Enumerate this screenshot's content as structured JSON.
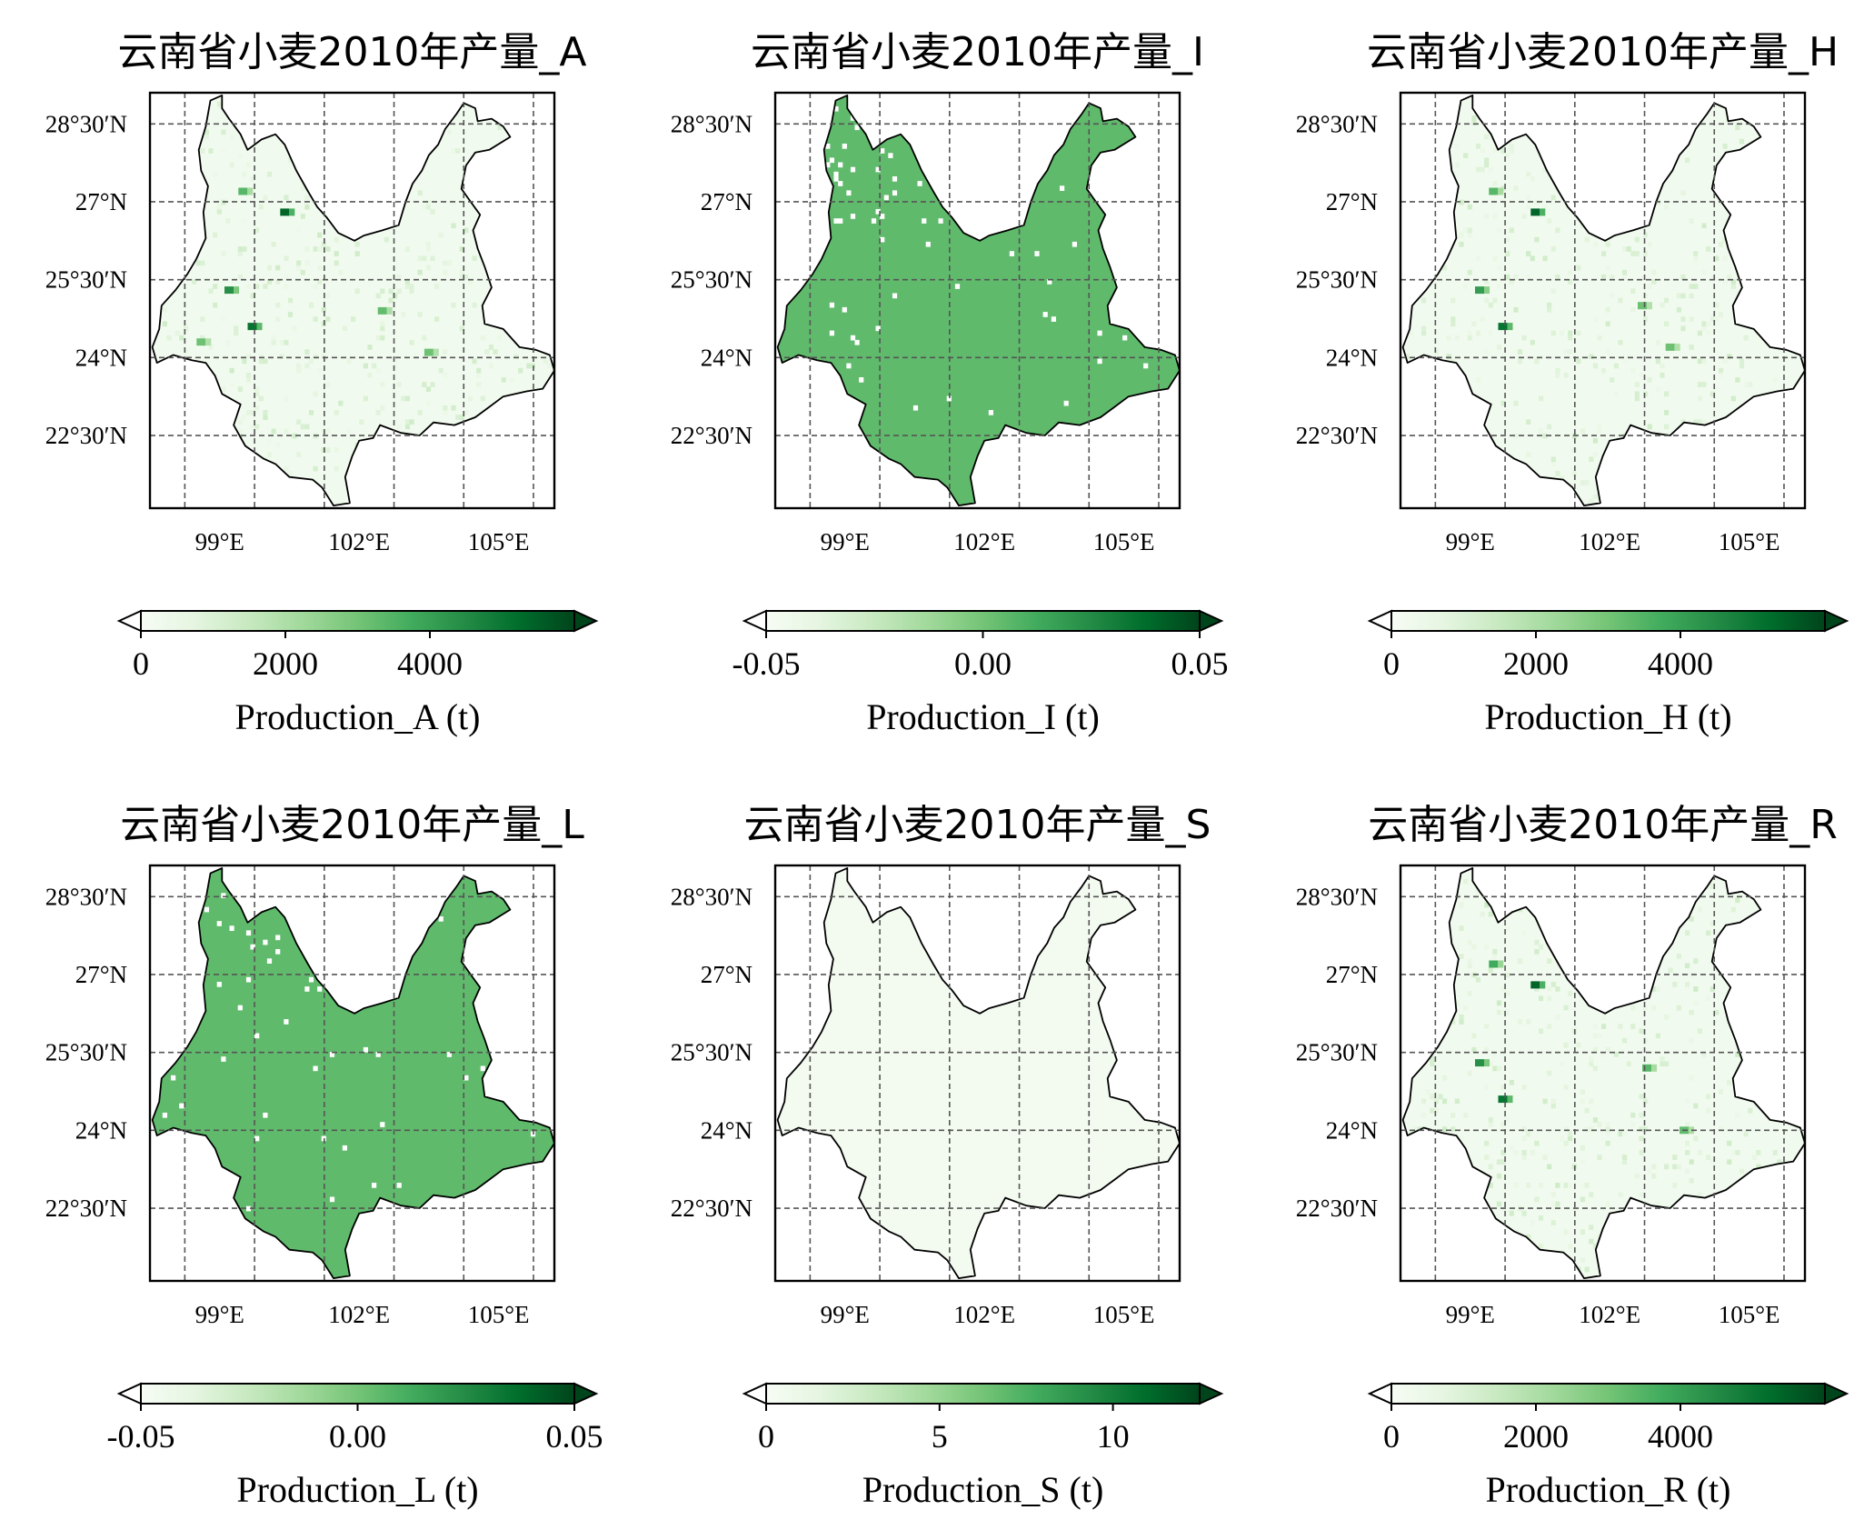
{
  "figure": {
    "panels": [
      {
        "title": "云南省小麦2010年产量_A",
        "field": "A",
        "fill_level": 0.04,
        "colorbar": {
          "label": "Production_A (t)",
          "vmax": 6000,
          "ticks": [
            {
              "v": 0,
              "label": "0"
            },
            {
              "v": 2000,
              "label": "2000"
            },
            {
              "v": 4000,
              "label": "4000"
            }
          ]
        },
        "hotspots": [
          [
            100.4,
            26.8,
            1.0
          ],
          [
            99.2,
            25.3,
            0.7
          ],
          [
            99.7,
            24.6,
            0.9
          ],
          [
            98.6,
            24.3,
            0.3
          ],
          [
            102.5,
            24.9,
            0.35
          ],
          [
            103.5,
            24.1,
            0.3
          ],
          [
            99.5,
            27.2,
            0.4
          ]
        ]
      },
      {
        "title": "云南省小麦2010年产量_I",
        "field": "I",
        "fill_level": 0.55,
        "colorbar": {
          "label": "Production_I (t)",
          "vmax": 0.05,
          "vmin": -0.05,
          "ticks": [
            {
              "v": -0.05,
              "label": "-0.05"
            },
            {
              "v": 0.0,
              "label": "0.00"
            },
            {
              "v": 0.05,
              "label": "0.05"
            }
          ]
        },
        "hotspots": []
      },
      {
        "title": "云南省小麦2010年产量_H",
        "field": "H",
        "fill_level": 0.04,
        "colorbar": {
          "label": "Production_H (t)",
          "vmax": 6000,
          "ticks": [
            {
              "v": 0,
              "label": "0"
            },
            {
              "v": 2000,
              "label": "2000"
            },
            {
              "v": 4000,
              "label": "4000"
            }
          ]
        },
        "hotspots": [
          [
            100.4,
            26.8,
            1.0
          ],
          [
            99.2,
            25.3,
            0.6
          ],
          [
            99.7,
            24.6,
            0.9
          ],
          [
            102.7,
            25.0,
            0.3
          ],
          [
            103.3,
            24.2,
            0.3
          ],
          [
            99.5,
            27.2,
            0.4
          ]
        ]
      },
      {
        "title": "云南省小麦2010年产量_L",
        "field": "L",
        "fill_level": 0.55,
        "colorbar": {
          "label": "Production_L (t)",
          "vmax": 0.05,
          "vmin": -0.05,
          "ticks": [
            {
              "v": -0.05,
              "label": "-0.05"
            },
            {
              "v": 0.0,
              "label": "0.00"
            },
            {
              "v": 0.05,
              "label": "0.05"
            }
          ]
        },
        "hotspots": []
      },
      {
        "title": "云南省小麦2010年产量_S",
        "field": "S",
        "fill_level": 0.03,
        "colorbar": {
          "label": "Production_S (t)",
          "vmax": 12.5,
          "ticks": [
            {
              "v": 0,
              "label": "0"
            },
            {
              "v": 5,
              "label": "5"
            },
            {
              "v": 10,
              "label": "10"
            }
          ]
        },
        "hotspots": []
      },
      {
        "title": "云南省小麦2010年产量_R",
        "field": "R",
        "fill_level": 0.04,
        "colorbar": {
          "label": "Production_R (t)",
          "vmax": 6000,
          "ticks": [
            {
              "v": 0,
              "label": "0"
            },
            {
              "v": 2000,
              "label": "2000"
            },
            {
              "v": 4000,
              "label": "4000"
            }
          ]
        },
        "hotspots": [
          [
            100.4,
            26.8,
            1.0
          ],
          [
            99.2,
            25.3,
            0.7
          ],
          [
            99.7,
            24.6,
            0.9
          ],
          [
            102.8,
            25.2,
            0.4
          ],
          [
            103.6,
            24.0,
            0.35
          ],
          [
            99.5,
            27.2,
            0.5
          ]
        ]
      }
    ],
    "lon_ticks": [
      {
        "v": 99,
        "label": "99°E"
      },
      {
        "v": 102,
        "label": "102°E"
      },
      {
        "v": 105,
        "label": "105°E"
      }
    ],
    "lat_ticks": [
      {
        "v": 28.5,
        "label": "28°30′N"
      },
      {
        "v": 27,
        "label": "27°N"
      },
      {
        "v": 25.5,
        "label": "25°30′N"
      },
      {
        "v": 24,
        "label": "24°N"
      },
      {
        "v": 22.5,
        "label": "22°30′N"
      }
    ],
    "extent": {
      "lon": [
        97.5,
        106.2
      ],
      "lat": [
        21.1,
        29.1
      ]
    },
    "colors": {
      "cmap": [
        "#f7fcf5",
        "#e5f5e0",
        "#c7e9c0",
        "#a1d99b",
        "#74c476",
        "#41ab5d",
        "#238b45",
        "#006d2c",
        "#00441b"
      ],
      "grid": "#555555",
      "boundary": "#000000"
    }
  }
}
